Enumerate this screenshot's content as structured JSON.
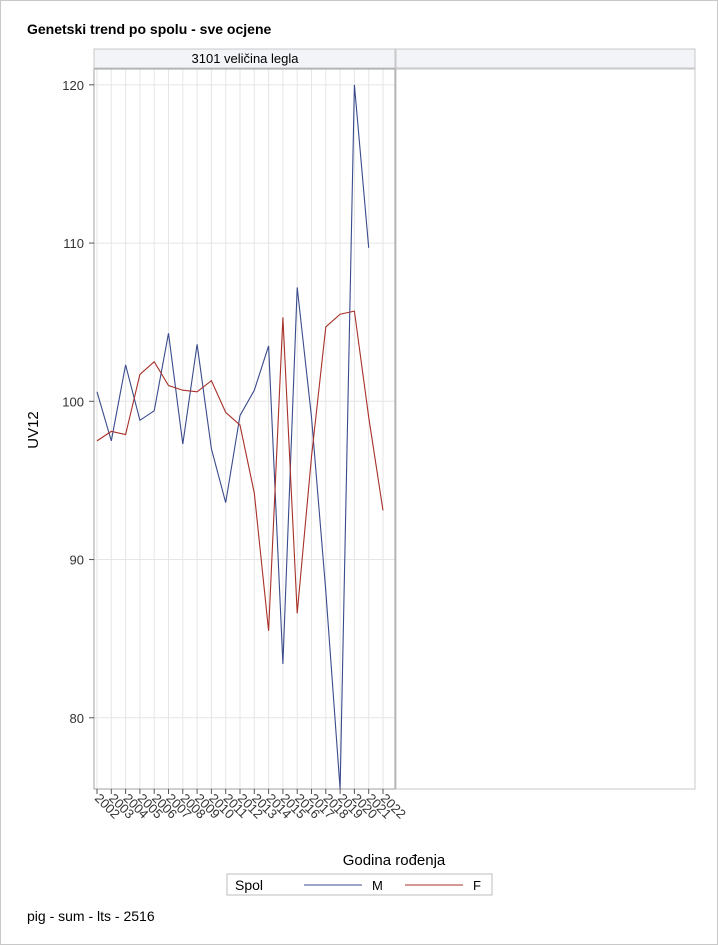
{
  "title": "Genetski trend po spolu - sve ocjene",
  "footer": "pig - sum - lts - 2516",
  "colors": {
    "M": "#3a4b8c",
    "F": "#a83028",
    "grid": "#e6e6e6",
    "frame": "#a0a0a0",
    "header_bg": "#f2f4f8"
  },
  "chart_data": {
    "type": "line",
    "panels": [
      {
        "header": "3101 veličina legla"
      },
      {
        "header": ""
      }
    ],
    "xlabel": "Godina rođenja",
    "ylabel": "UV12",
    "ylim": [
      75.5,
      121
    ],
    "yticks": [
      80,
      90,
      100,
      110,
      120
    ],
    "categories": [
      "2002",
      "2003",
      "2004",
      "2005",
      "2006",
      "2007",
      "2008",
      "2009",
      "2010",
      "2011",
      "2012",
      "2013",
      "2014",
      "2015",
      "2016",
      "2017",
      "2018",
      "2019",
      "2020",
      "2021",
      "2022"
    ],
    "legend": {
      "title": "Spol",
      "position": "bottom"
    },
    "series": [
      {
        "name": "M",
        "color": "#3a4b8c",
        "x": [
          "2002",
          "2003",
          "2004",
          "2005",
          "2006",
          "2007",
          "2008",
          "2009",
          "2010",
          "2011",
          "2012",
          "2013",
          "2014",
          "2015",
          "2016",
          "2017",
          "2018",
          "2019",
          "2020",
          "2021"
        ],
        "values": [
          100.6,
          97.5,
          102.3,
          98.8,
          99.4,
          104.3,
          97.3,
          103.6,
          97.0,
          93.6,
          99.1,
          100.7,
          103.5,
          83.4,
          107.2,
          99.0,
          88.0,
          75.5,
          120.0,
          109.7
        ]
      },
      {
        "name": "F",
        "color": "#a83028",
        "x": [
          "2002",
          "2003",
          "2004",
          "2005",
          "2006",
          "2007",
          "2008",
          "2009",
          "2010",
          "2011",
          "2012",
          "2013",
          "2014",
          "2015",
          "2016",
          "2017",
          "2018",
          "2019",
          "2020",
          "2021",
          "2022"
        ],
        "values": [
          97.5,
          98.1,
          97.9,
          101.7,
          102.5,
          101.0,
          100.7,
          100.6,
          101.3,
          99.3,
          98.5,
          94.2,
          85.5,
          105.3,
          86.6,
          96.5,
          104.7,
          105.5,
          105.7,
          99.0,
          93.1
        ]
      }
    ]
  }
}
